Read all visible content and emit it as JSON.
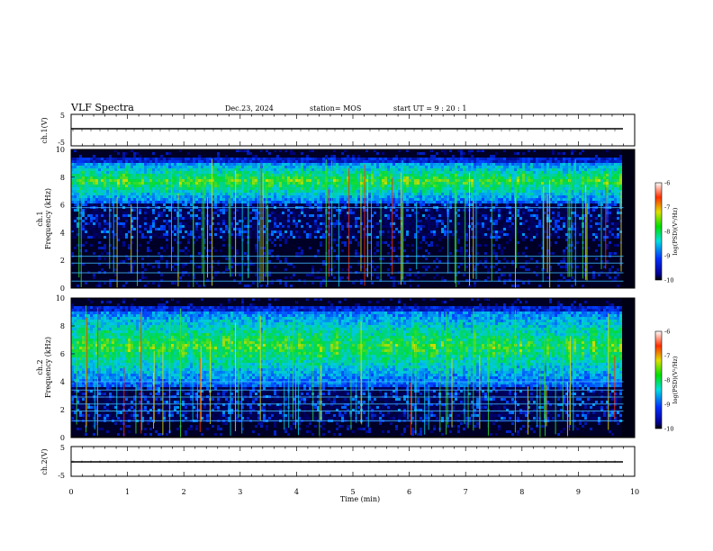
{
  "header": {
    "title": "VLF Spectra",
    "date": "Dec.23, 2024",
    "station": "station= MOS",
    "start": "start  UT  =   9  : 20 : 1"
  },
  "chart_data": [
    {
      "type": "line",
      "name": "ch1-waveform",
      "ylabel": "ch.1(V)",
      "ylim": [
        -5,
        5
      ],
      "yticks": [
        "5",
        "-5"
      ],
      "series": [
        {
          "x": [
            0,
            9.8
          ],
          "values": [
            0,
            0
          ]
        }
      ]
    },
    {
      "type": "heatmap",
      "name": "ch1-spectrogram",
      "ylabel": "ch.1\nFrequency (kHz)",
      "ylabel_lines": [
        "ch.1",
        "Frequency (kHz)"
      ],
      "ylim": [
        0,
        10
      ],
      "yticks": [
        "0",
        "2",
        "4",
        "6",
        "8",
        "10"
      ],
      "xlim": [
        0,
        10
      ],
      "data_xmax": 9.8,
      "colorbar": {
        "label": "log(PSD)(V²/Hz)",
        "range": [
          -10,
          -6
        ],
        "ticks": [
          "-6",
          "-7",
          "-8",
          "-9",
          "-10"
        ]
      },
      "band_khz": [
        6.0,
        9.4
      ],
      "horizontal_lines_khz": [
        0.5,
        1.1,
        1.8,
        2.3,
        5.8
      ]
    },
    {
      "type": "heatmap",
      "name": "ch2-spectrogram",
      "ylabel": "ch.2\nFrequency (kHz)",
      "ylabel_lines": [
        "ch.2",
        "Frequency (kHz)"
      ],
      "ylim": [
        0,
        10
      ],
      "yticks": [
        "0",
        "2",
        "4",
        "6",
        "8",
        "10"
      ],
      "xlim": [
        0,
        10
      ],
      "data_xmax": 9.8,
      "colorbar": {
        "label": "log(PSD)(V²/Hz)",
        "range": [
          -10,
          -6
        ],
        "ticks": [
          "-6",
          "-7",
          "-8",
          "-9",
          "-10"
        ]
      },
      "band_khz": [
        3.5,
        9.5
      ],
      "horizontal_lines_khz": [
        1.2,
        1.9,
        2.4,
        2.9,
        3.4,
        4.0
      ]
    },
    {
      "type": "line",
      "name": "ch2-waveform",
      "ylabel": "ch.2(V)",
      "ylim": [
        -5,
        5
      ],
      "yticks": [
        "5",
        "-5"
      ],
      "series": [
        {
          "x": [
            0,
            9.8
          ],
          "values": [
            0,
            0
          ]
        }
      ]
    }
  ],
  "xaxis": {
    "label": "Time  (min)",
    "ticks": [
      "0",
      "1",
      "2",
      "3",
      "4",
      "5",
      "6",
      "7",
      "8",
      "9",
      "10"
    ],
    "range": [
      0,
      10
    ]
  }
}
